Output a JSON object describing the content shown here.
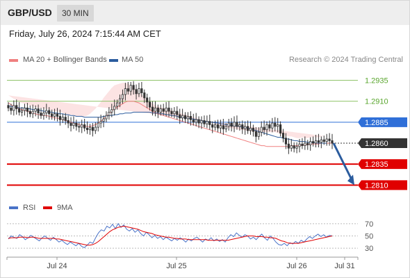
{
  "header": {
    "symbol": "GBP/USD",
    "timeframe": "30 MIN"
  },
  "date_text": "Friday, July 26, 2024 7:15:44 AM CET",
  "legend": {
    "items": [
      {
        "label": "MA 20 + Bollinger Bands",
        "color": "#f08080"
      },
      {
        "label": "MA 50",
        "color": "#2b5c9e"
      }
    ],
    "copyright": "Research © 2024 Trading Central"
  },
  "rsi_legend": {
    "items": [
      {
        "label": "RSI",
        "color": "#4a73c8"
      },
      {
        "label": "9MA",
        "color": "#e00000"
      }
    ]
  },
  "chart_data": [
    {
      "type": "candlestick",
      "ylim": [
        1.2797,
        1.2952
      ],
      "x_labels": [
        "Jul 24",
        "Jul 25",
        "Jul 26",
        "Jul 31"
      ],
      "current_price": "1.2860",
      "levels": [
        {
          "label": "1.2935",
          "value": 1.2935,
          "kind": "resistance",
          "color": "#8fc46a"
        },
        {
          "label": "1.2910",
          "value": 1.291,
          "kind": "resistance",
          "color": "#8fc46a"
        },
        {
          "label": "1.2885",
          "value": 1.2885,
          "kind": "pivot",
          "color": "#2f6fd8"
        },
        {
          "label": "1.2835",
          "value": 1.2835,
          "kind": "support",
          "color": "#e00000"
        },
        {
          "label": "1.2810",
          "value": 1.281,
          "kind": "support",
          "color": "#e00000"
        }
      ],
      "close_series": [
        1.2902,
        1.2899,
        1.2905,
        1.2901,
        1.2897,
        1.2899,
        1.2902,
        1.2898,
        1.2895,
        1.2898,
        1.2901,
        1.2896,
        1.2893,
        1.2896,
        1.2899,
        1.2895,
        1.2892,
        1.2895,
        1.2892,
        1.2888,
        1.2891,
        1.2887,
        1.2884,
        1.2881,
        1.2884,
        1.288,
        1.2879,
        1.2882,
        1.2878,
        1.2876,
        1.2879,
        1.2875,
        1.2879,
        1.2884,
        1.2886,
        1.2889,
        1.2893,
        1.2897,
        1.29,
        1.2904,
        1.2908,
        1.2913,
        1.2918,
        1.2925,
        1.2922,
        1.2929,
        1.2924,
        1.2919,
        1.2925,
        1.292,
        1.2914,
        1.2909,
        1.2903,
        1.2898,
        1.2902,
        1.2897,
        1.2901,
        1.2898,
        1.2902,
        1.2898,
        1.2895,
        1.2898,
        1.2894,
        1.289,
        1.2893,
        1.2889,
        1.2892,
        1.2888,
        1.2885,
        1.2888,
        1.2884,
        1.2887,
        1.2883,
        1.2886,
        1.2882,
        1.2879,
        1.2882,
        1.2878,
        1.2881,
        1.2877,
        1.288,
        1.2884,
        1.288,
        1.2885,
        1.288,
        1.2882,
        1.2877,
        1.288,
        1.2875,
        1.2878,
        1.2874,
        1.2868,
        1.2873,
        1.2879,
        1.2876,
        1.2882,
        1.2878,
        1.2884,
        1.288,
        1.2882,
        1.2872,
        1.2866,
        1.2859,
        1.2854,
        1.2857,
        1.2854,
        1.2856,
        1.2859,
        1.2857,
        1.286,
        1.2858,
        1.2862,
        1.286,
        1.2863,
        1.2861,
        1.2864,
        1.2862,
        1.2865,
        1.2863,
        1.286
      ],
      "ma20": [
        1.2908,
        1.2906,
        1.2904,
        1.2903,
        1.2901,
        1.29,
        1.2899,
        1.2898,
        1.2897,
        1.2896,
        1.2895,
        1.2894,
        1.2894,
        1.2893,
        1.2893,
        1.2892,
        1.2891,
        1.289,
        1.289,
        1.2889,
        1.2888,
        1.2887,
        1.2886,
        1.2885,
        1.2884,
        1.2883,
        1.2882,
        1.2881,
        1.288,
        1.288,
        1.288,
        1.2881,
        1.2882,
        1.2884,
        1.2886,
        1.2889,
        1.2892,
        1.2895,
        1.2898,
        1.2901,
        1.2903,
        1.2905,
        1.2907,
        1.2909,
        1.291,
        1.291,
        1.291,
        1.2909,
        1.2908,
        1.2906,
        1.2904,
        1.2902,
        1.29,
        1.2898,
        1.2896,
        1.2895,
        1.2894,
        1.2893,
        1.2892,
        1.2891,
        1.289,
        1.2889,
        1.2888,
        1.2887,
        1.2886,
        1.2885,
        1.2884,
        1.2883,
        1.2882,
        1.2881,
        1.288,
        1.2879,
        1.2878,
        1.2877,
        1.2876,
        1.2875,
        1.2874,
        1.2873,
        1.2872,
        1.2871,
        1.287,
        1.2869,
        1.2868,
        1.2867,
        1.2866,
        1.2865,
        1.2864,
        1.2863,
        1.2862,
        1.2861,
        1.286,
        1.2859,
        1.2858,
        1.2857,
        1.2857,
        1.2856,
        1.2856,
        1.2856,
        1.2856,
        1.2856,
        1.2856,
        1.2856,
        1.2856,
        1.2856,
        1.2857,
        1.2857,
        1.2857,
        1.2857,
        1.2858,
        1.2858,
        1.2858,
        1.2859,
        1.2859,
        1.2859,
        1.2859,
        1.286,
        1.286,
        1.286,
        1.286,
        1.286
      ],
      "band_width": [
        0.0009,
        0.0009,
        0.0009,
        0.0009,
        0.0008,
        0.0008,
        0.0008,
        0.0008,
        0.0008,
        0.0008,
        0.0008,
        0.0008,
        0.0008,
        0.0008,
        0.0008,
        0.0008,
        0.0008,
        0.0008,
        0.0008,
        0.0008,
        0.0008,
        0.0008,
        0.0008,
        0.0009,
        0.0009,
        0.0009,
        0.001,
        0.0011,
        0.0012,
        0.0013,
        0.0015,
        0.0017,
        0.0019,
        0.0021,
        0.0023,
        0.0025,
        0.0026,
        0.0027,
        0.0028,
        0.0028,
        0.0027,
        0.0026,
        0.0025,
        0.0023,
        0.0021,
        0.0019,
        0.0017,
        0.0015,
        0.0013,
        0.0012,
        0.0011,
        0.001,
        0.001,
        0.0009,
        0.0009,
        0.0009,
        0.0009,
        0.0009,
        0.0009,
        0.0009,
        0.0009,
        0.0009,
        0.0009,
        0.0009,
        0.0009,
        0.0009,
        0.0009,
        0.0009,
        0.0009,
        0.0009,
        0.0009,
        0.0009,
        0.0009,
        0.0009,
        0.0009,
        0.0009,
        0.0009,
        0.0009,
        0.0009,
        0.0009,
        0.0009,
        0.0009,
        0.001,
        0.001,
        0.0011,
        0.0011,
        0.0012,
        0.0012,
        0.0013,
        0.0013,
        0.0014,
        0.0015,
        0.0015,
        0.0016,
        0.0016,
        0.0017,
        0.0017,
        0.0017,
        0.0017,
        0.0016,
        0.0015,
        0.0014,
        0.0013,
        0.0012,
        0.0011,
        0.001,
        0.0009,
        0.0009,
        0.0009,
        0.0008,
        0.0008,
        0.0008,
        0.0008,
        0.0008,
        0.0008,
        0.0008,
        0.0008,
        0.0008
      ],
      "ma50": [
        1.2904,
        1.2904,
        1.2903,
        1.2903,
        1.2902,
        1.2902,
        1.2902,
        1.2901,
        1.2901,
        1.29,
        1.29,
        1.2899,
        1.2899,
        1.2898,
        1.2898,
        1.2897,
        1.2897,
        1.2896,
        1.2896,
        1.2895,
        1.2895,
        1.2894,
        1.2894,
        1.2893,
        1.2893,
        1.2892,
        1.2892,
        1.2892,
        1.2891,
        1.2891,
        1.2891,
        1.2891,
        1.2891,
        1.2891,
        1.2891,
        1.2892,
        1.2892,
        1.2893,
        1.2893,
        1.2894,
        1.2894,
        1.2895,
        1.2895,
        1.2896,
        1.2896,
        1.2896,
        1.2897,
        1.2897,
        1.2897,
        1.2897,
        1.2897,
        1.2897,
        1.2897,
        1.2896,
        1.2896,
        1.2896,
        1.2895,
        1.2895,
        1.2894,
        1.2894,
        1.2893,
        1.2893,
        1.2892,
        1.2891,
        1.2891,
        1.289,
        1.289,
        1.2889,
        1.2889,
        1.2888,
        1.2888,
        1.2887,
        1.2886,
        1.2886,
        1.2885,
        1.2885,
        1.2884,
        1.2884,
        1.2883,
        1.2883,
        1.2882,
        1.2882,
        1.2881,
        1.2881,
        1.288,
        1.288,
        1.2879,
        1.2879,
        1.2878,
        1.2877,
        1.2876,
        1.2875,
        1.2874,
        1.2873,
        1.2872,
        1.2871,
        1.287,
        1.2869,
        1.2868,
        1.2867,
        1.2867,
        1.2866,
        1.2865,
        1.2865,
        1.2864,
        1.2863,
        1.2863,
        1.2862,
        1.2862,
        1.2862,
        1.2861,
        1.2861,
        1.2861,
        1.286,
        1.286,
        1.286,
        1.286,
        1.286
      ],
      "forecast": {
        "from": 1.286,
        "to": 1.281
      }
    },
    {
      "type": "line",
      "title": "RSI",
      "ylim": [
        20,
        80
      ],
      "ticks": [
        "70",
        "50",
        "30"
      ],
      "series": [
        {
          "name": "RSI",
          "values": [
            45,
            50,
            48,
            46,
            52,
            49,
            44,
            47,
            51,
            48,
            45,
            42,
            47,
            50,
            46,
            43,
            48,
            44,
            40,
            43,
            39,
            36,
            40,
            37,
            34,
            38,
            33,
            31,
            35,
            40,
            38,
            47,
            55,
            60,
            58,
            66,
            63,
            69,
            62,
            70,
            64,
            68,
            61,
            58,
            62,
            56,
            60,
            54,
            50,
            56,
            52,
            47,
            51,
            46,
            49,
            44,
            48,
            45,
            42,
            46,
            43,
            47,
            44,
            40,
            45,
            42,
            46,
            48,
            44,
            40,
            45,
            43,
            47,
            42,
            45,
            41,
            44,
            40,
            47,
            52,
            49,
            55,
            51,
            48,
            52,
            50,
            45,
            48,
            44,
            49,
            53,
            47,
            43,
            50,
            46,
            40,
            36,
            35,
            38,
            34,
            39,
            37,
            41,
            38,
            43,
            40,
            45,
            49,
            46,
            50,
            53,
            49,
            52,
            48,
            51,
            50
          ]
        },
        {
          "name": "9MA",
          "values": [
            46,
            47,
            47,
            47,
            48,
            48,
            48,
            47,
            48,
            48,
            47,
            46,
            46,
            46,
            46,
            46,
            46,
            45,
            45,
            44,
            43,
            42,
            41,
            40,
            39,
            38,
            37,
            36,
            35,
            35,
            36,
            38,
            41,
            45,
            49,
            53,
            57,
            60,
            62,
            64,
            65,
            66,
            65,
            64,
            63,
            62,
            61,
            59,
            57,
            56,
            55,
            54,
            52,
            51,
            50,
            49,
            48,
            48,
            47,
            46,
            46,
            45,
            45,
            45,
            44,
            44,
            44,
            44,
            44,
            44,
            44,
            43,
            43,
            43,
            43,
            43,
            43,
            43,
            43,
            44,
            45,
            46,
            47,
            48,
            49,
            50,
            50,
            50,
            49,
            49,
            49,
            48,
            48,
            47,
            47,
            46,
            44,
            42,
            41,
            39,
            38,
            38,
            38,
            38,
            39,
            40,
            41,
            42,
            43,
            44,
            45,
            46,
            47,
            48,
            49,
            50
          ]
        }
      ]
    }
  ]
}
